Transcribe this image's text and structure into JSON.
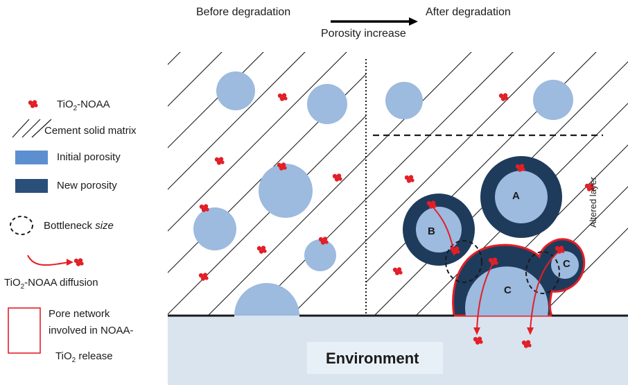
{
  "header": {
    "before": "Before degradation",
    "after": "After degradation",
    "arrow_label": "Porosity increase"
  },
  "legend": {
    "tio2_label_main": "TiO",
    "tio2_label_sub": "2",
    "tio2_label_tail": "-NOAA",
    "cement": "Cement solid matrix",
    "initial_porosity": "Initial porosity",
    "new_porosity": "New porosity",
    "bottleneck_main": "Bottleneck ",
    "bottleneck_em": "size",
    "diffusion_main": "TiO",
    "diffusion_sub": "2",
    "diffusion_tail": "-NOAA diffusion",
    "network_line1": "Pore network",
    "network_line2": "involved in NOAA-",
    "network_line3_main": "TiO",
    "network_line3_sub": "2",
    "network_line3_tail": " release"
  },
  "pores": {
    "a": "A",
    "b": "B",
    "c_large": "C",
    "c_small": "C"
  },
  "environment": "Environment",
  "side_label": "Altered layer",
  "colors": {
    "initial": "#9dbadf",
    "new": "#1f3b5c",
    "particle": "#e21f26",
    "outline": "#e21f26",
    "environment": "#d9e4ef",
    "env_box": "#e7f0f6",
    "legend_initial": "#5c8fcf",
    "legend_new": "#2a4f7a"
  }
}
